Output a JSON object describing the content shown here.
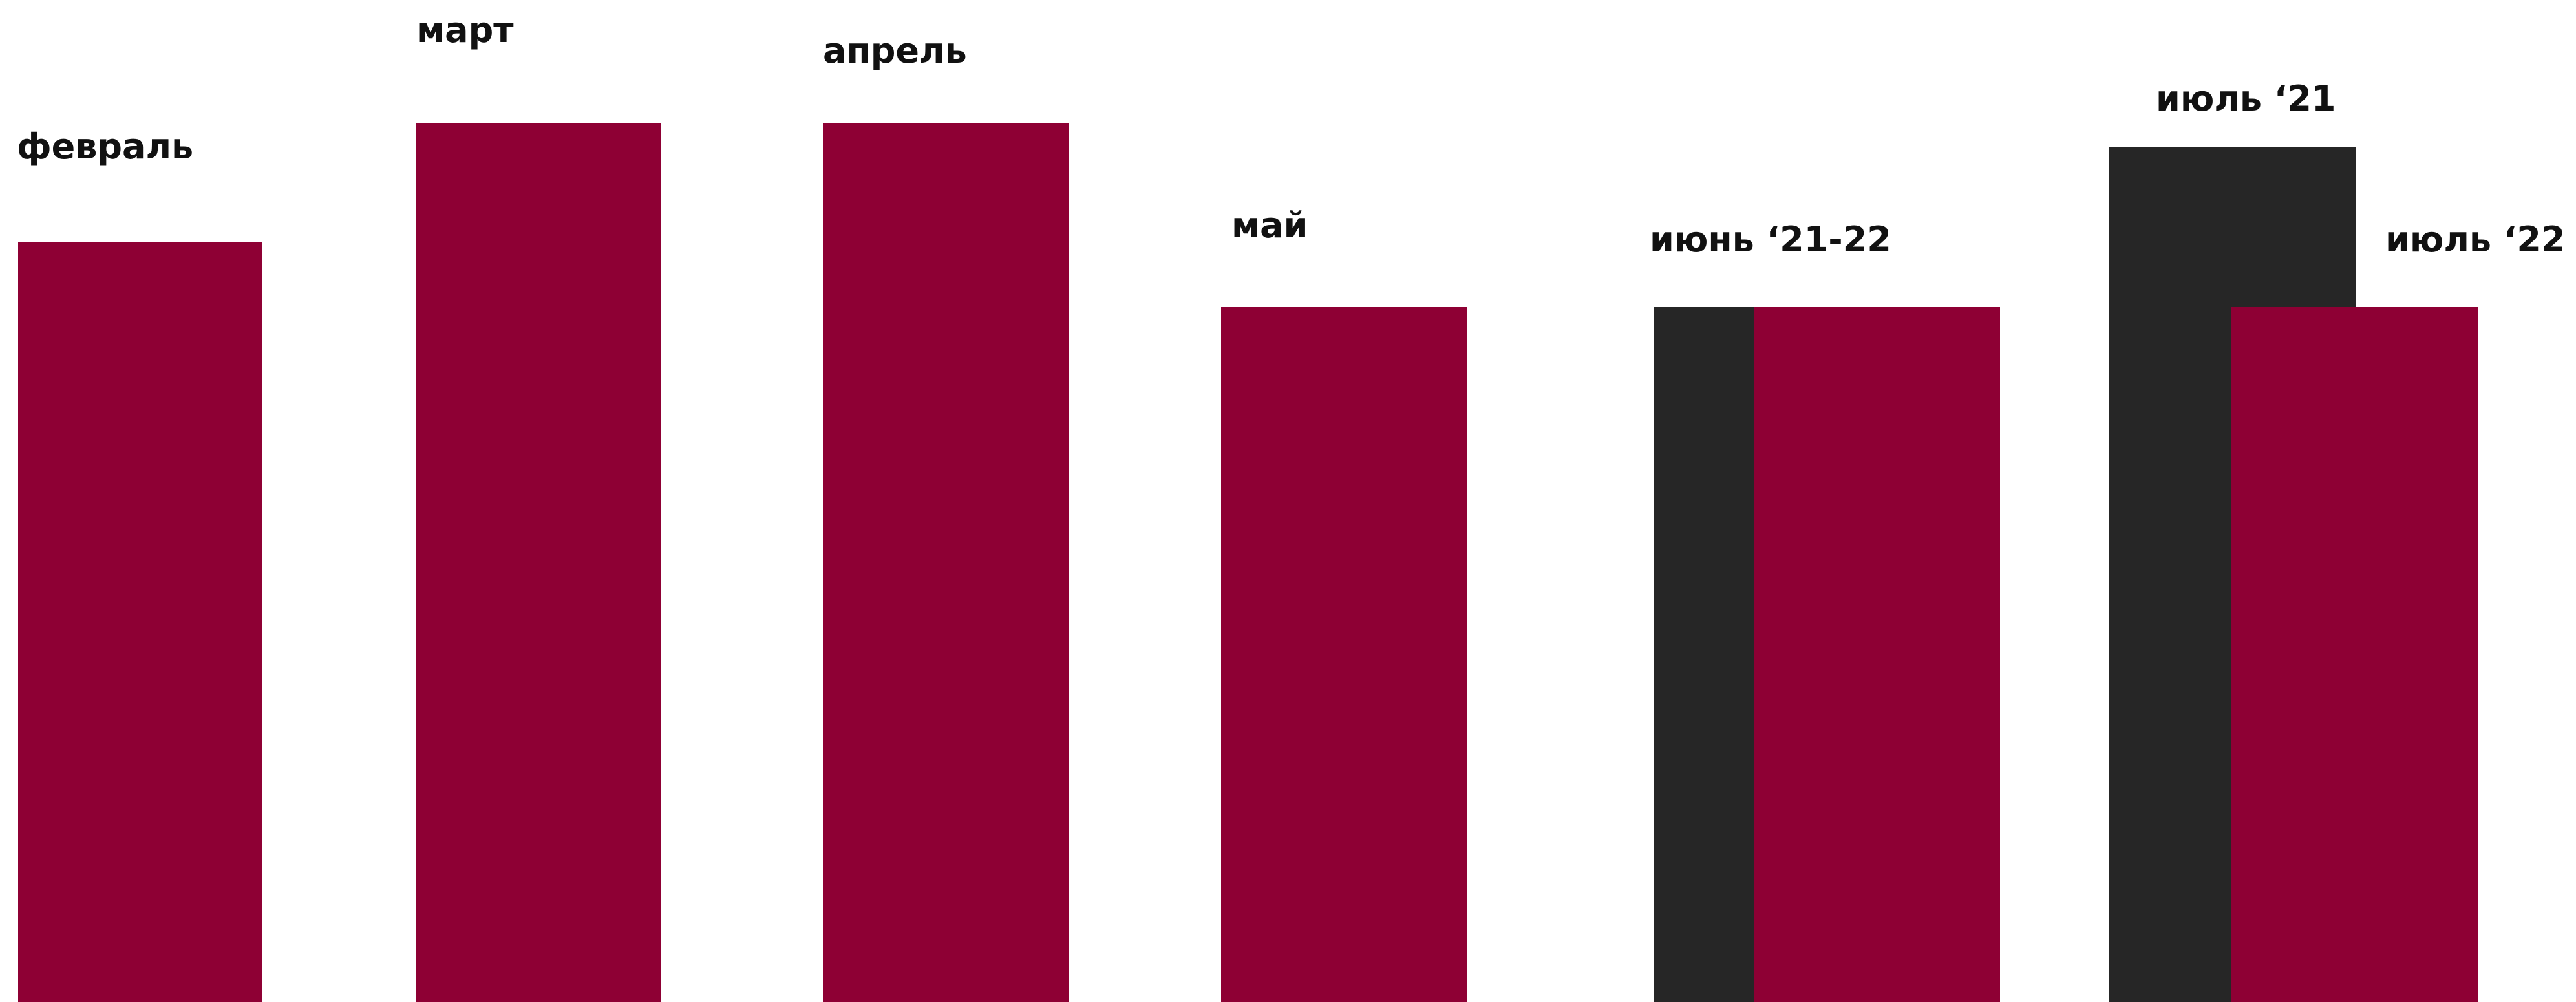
{
  "chart_data": {
    "type": "bar",
    "title": "",
    "xlabel": "",
    "ylabel": "",
    "grid": false,
    "legend": "none",
    "colors": {
      "primary": "#8e0034",
      "secondary": "#262626",
      "label": "#111111",
      "background": "#ffffff"
    },
    "categories": [
      "февраль",
      "март",
      "апрель",
      "май",
      "июнь ‘21-22",
      "июль ‘21",
      "июль ‘22"
    ],
    "bars": [
      {
        "label": "февраль",
        "value": 1176,
        "color": "#8e0034"
      },
      {
        "label": "март",
        "value": 1360,
        "color": "#8e0034"
      },
      {
        "label": "апрель",
        "value": 1360,
        "color": "#8e0034"
      },
      {
        "label": "май",
        "value": 1075,
        "color": "#8e0034"
      },
      {
        "label": "",
        "value": 1075,
        "color": "#262626"
      },
      {
        "label": "июнь ‘21-22",
        "value": 1075,
        "color": "#8e0034"
      },
      {
        "label": "июль ‘21",
        "value": 1322,
        "color": "#262626"
      },
      {
        "label": "июль ‘22",
        "value": 1075,
        "color": "#8e0034"
      }
    ]
  }
}
